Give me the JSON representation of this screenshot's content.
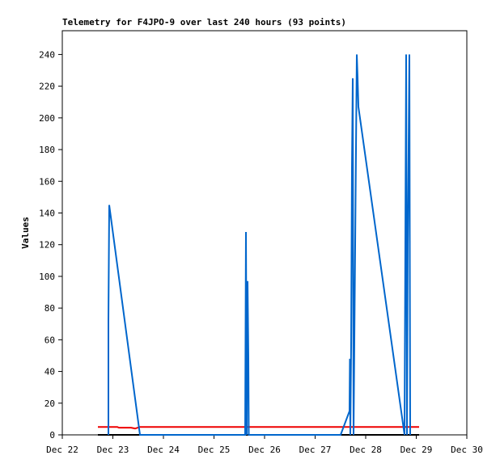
{
  "chart_data": {
    "type": "line",
    "title": "Telemetry for F4JPO-9 over last 240 hours (93 points)",
    "y_label": "Values",
    "xlim": [
      0,
      8
    ],
    "xticks": [
      {
        "value": 0,
        "label": "Dec 22"
      },
      {
        "value": 1,
        "label": "Dec 23"
      },
      {
        "value": 2,
        "label": "Dec 24"
      },
      {
        "value": 3,
        "label": "Dec 25"
      },
      {
        "value": 4,
        "label": "Dec 26"
      },
      {
        "value": 5,
        "label": "Dec 27"
      },
      {
        "value": 6,
        "label": "Dec 28"
      },
      {
        "value": 7,
        "label": "Dec 29"
      },
      {
        "value": 8,
        "label": "Dec 30"
      }
    ],
    "ylim": [
      0,
      255
    ],
    "yticks": [
      0,
      20,
      40,
      60,
      80,
      100,
      120,
      140,
      160,
      180,
      200,
      220,
      240
    ],
    "series": [
      {
        "color": "#0066cc",
        "x": [
          0.912,
          0.912,
          0.928,
          1.536,
          3.616,
          3.632,
          3.648,
          3.664,
          3.68,
          3.688,
          5.504,
          5.68,
          5.688,
          5.696,
          5.712,
          5.728,
          5.744,
          5.76,
          5.824,
          5.84,
          5.856,
          6.768,
          6.8,
          6.816,
          6.832,
          6.864,
          6.88
        ],
        "values": [
          0,
          72,
          145,
          0,
          0,
          128,
          0,
          97,
          48,
          0,
          0,
          15,
          48,
          0,
          56,
          168,
          225,
          0,
          240,
          225,
          207,
          0,
          240,
          0,
          120,
          240,
          0
        ]
      },
      {
        "color": "#ee0000",
        "x": [
          0.704,
          1.088,
          1.12,
          1.36,
          1.44,
          1.536,
          7.056
        ],
        "values": [
          5,
          5,
          4.5,
          4.5,
          4,
          5,
          5
        ]
      },
      {
        "color": "#000000",
        "x": [
          0.704,
          7.056
        ],
        "values": [
          0,
          0
        ]
      }
    ]
  }
}
